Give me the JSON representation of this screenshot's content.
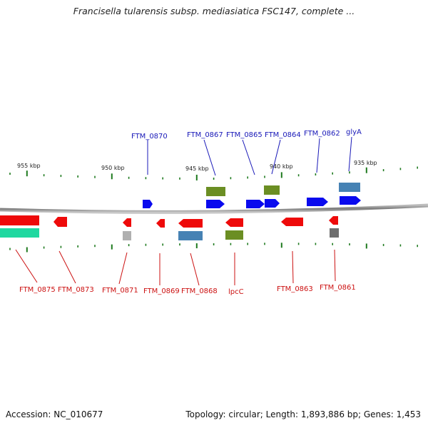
{
  "title": "Francisella tularensis subsp. mediasiatica FSC147, complete ...",
  "footer": {
    "accession": "Accession: NC_010677",
    "topology": "Topology: circular; Length: 1,893,886 bp; Genes: 1,453"
  },
  "scale_labels": [
    "955 kbp",
    "950 kbp",
    "945 kbp",
    "940 kbp",
    "935 kbp"
  ],
  "colors": {
    "forward_gene": "#0a0aee",
    "reverse_gene": "#ee0a0a",
    "forward_label": "#1818b8",
    "reverse_label": "#cc1111",
    "tick": "#1e7a1e",
    "backbone": "#8a8a8a",
    "rna_olive": "#6b8e23",
    "rna_steel": "#4682b4",
    "rna_teal": "#20d8a0",
    "rna_grey": "#a8a8a8"
  },
  "forward_genes": [
    "FTM_0870",
    "FTM_0867",
    "FTM_0865",
    "FTM_0864",
    "FTM_0862",
    "glyA"
  ],
  "reverse_genes": [
    "FTM_0875",
    "FTM_0873",
    "FTM_0871",
    "FTM_0869",
    "FTM_0868",
    "lpcC",
    "FTM_0863",
    "FTM_0861"
  ]
}
